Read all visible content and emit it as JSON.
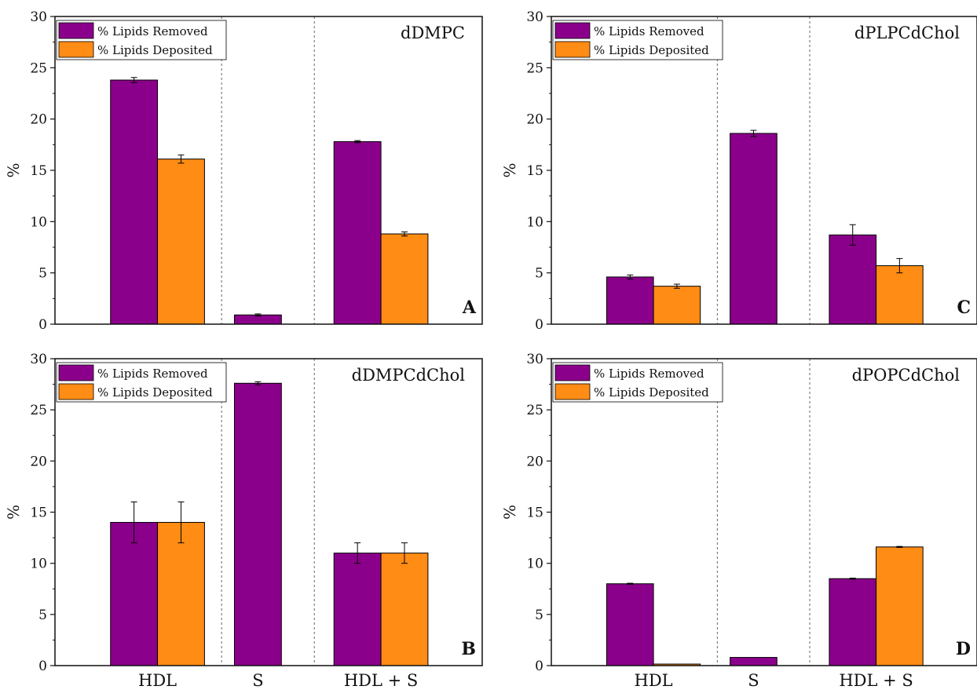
{
  "colors": {
    "removed": "#8b008b",
    "deposited": "#ff8c14",
    "axis": "#111111",
    "divider": "#666666"
  },
  "legend": [
    "% Lipids Removed",
    "% Lipids Deposited"
  ],
  "category_labels": [
    "HDL",
    "S",
    "HDL + S"
  ],
  "chart_data": [
    {
      "type": "bar",
      "panel": "A",
      "title": "dDMPC",
      "ylabel": "%",
      "ylim": [
        0,
        30
      ],
      "yticks": [
        0,
        5,
        10,
        15,
        20,
        25,
        30
      ],
      "categories": [
        "HDL",
        "S",
        "HDL + S"
      ],
      "tick_labels_shown": false,
      "series": [
        {
          "name": "% Lipids Removed",
          "values": [
            23.8,
            0.9,
            17.8
          ],
          "errors": [
            0.25,
            0.1,
            0.1
          ]
        },
        {
          "name": "% Lipids Deposited",
          "values": [
            16.1,
            null,
            8.8
          ],
          "errors": [
            0.4,
            null,
            0.2
          ]
        }
      ],
      "legend_position": "top-left",
      "grid": false
    },
    {
      "type": "bar",
      "panel": "B",
      "title": "dDMPCdChol",
      "ylabel": "%",
      "ylim": [
        0,
        30
      ],
      "yticks": [
        0,
        5,
        10,
        15,
        20,
        25,
        30
      ],
      "categories": [
        "HDL",
        "S",
        "HDL + S"
      ],
      "tick_labels_shown": true,
      "series": [
        {
          "name": "% Lipids Removed",
          "values": [
            14.0,
            27.6,
            11.0
          ],
          "errors": [
            2.0,
            0.15,
            1.0
          ]
        },
        {
          "name": "% Lipids Deposited",
          "values": [
            14.0,
            null,
            11.0
          ],
          "errors": [
            2.0,
            null,
            1.0
          ]
        }
      ],
      "legend_position": "top-left",
      "grid": false
    },
    {
      "type": "bar",
      "panel": "C",
      "title": "dPLPCdChol",
      "ylabel": "%",
      "ylim": [
        0,
        30
      ],
      "yticks": [
        0,
        5,
        10,
        15,
        20,
        25,
        30
      ],
      "categories": [
        "HDL",
        "S",
        "HDL + S"
      ],
      "tick_labels_shown": false,
      "series": [
        {
          "name": "% Lipids Removed",
          "values": [
            4.6,
            18.6,
            8.7
          ],
          "errors": [
            0.2,
            0.3,
            1.0
          ]
        },
        {
          "name": "% Lipids Deposited",
          "values": [
            3.7,
            null,
            5.7
          ],
          "errors": [
            0.2,
            null,
            0.7
          ]
        }
      ],
      "legend_position": "top-left",
      "grid": false
    },
    {
      "type": "bar",
      "panel": "D",
      "title": "dPOPCdChol",
      "ylabel": "%",
      "ylim": [
        0,
        30
      ],
      "yticks": [
        0,
        5,
        10,
        15,
        20,
        25,
        30
      ],
      "categories": [
        "HDL",
        "S",
        "HDL + S"
      ],
      "tick_labels_shown": true,
      "series": [
        {
          "name": "% Lipids Removed",
          "values": [
            8.0,
            0.8,
            8.5
          ],
          "errors": [
            0.05,
            0.0,
            0.05
          ]
        },
        {
          "name": "% Lipids Deposited",
          "values": [
            0.15,
            null,
            11.6
          ],
          "errors": [
            0.0,
            null,
            0.05
          ]
        }
      ],
      "legend_position": "top-left",
      "grid": false
    }
  ]
}
